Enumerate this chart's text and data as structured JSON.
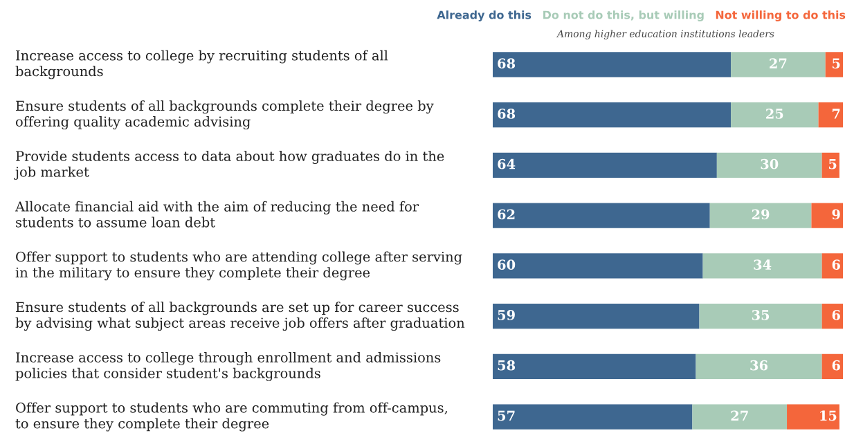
{
  "chart_data": {
    "type": "bar",
    "orientation": "horizontal",
    "stacked": true,
    "data_labels": true,
    "legend": "top",
    "subtitle": "Among higher education institutions leaders",
    "categories": [
      "Increase access to college by recruiting students of all\nbackgrounds",
      "Ensure students of all backgrounds complete their degree by\noffering quality academic advising",
      "Provide students access to data about how graduates do in the\njob market",
      "Allocate financial aid with the aim of reducing the need for\nstudents to assume loan debt",
      "Offer support to students who are attending college after serving\nin the military to ensure they complete their degree",
      "Ensure students of all backgrounds are set up for career success\nby advising what subject areas receive job offers after graduation",
      "Increase access to college through enrollment and admissions\npolicies that consider student's backgrounds",
      "Offer support to students who are commuting from off-campus,\nto ensure they complete their degree"
    ],
    "series": [
      {
        "name": "Already do this",
        "color": "#3e6790",
        "values": [
          68,
          68,
          64,
          62,
          60,
          59,
          58,
          57
        ]
      },
      {
        "name": "Do not do this, but willing",
        "color": "#a8cbb7",
        "values": [
          27,
          25,
          30,
          29,
          34,
          35,
          36,
          27
        ]
      },
      {
        "name": "Not willing to do this",
        "color": "#f4663b",
        "values": [
          5,
          7,
          5,
          9,
          6,
          6,
          6,
          15
        ]
      }
    ]
  }
}
